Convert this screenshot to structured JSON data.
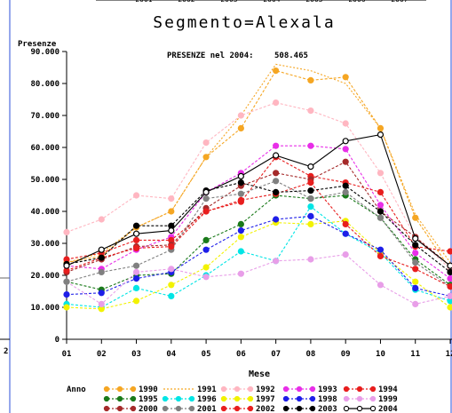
{
  "chart_data": {
    "type": "line",
    "title": "Segmento=Alexala",
    "ylabel": "Presenze",
    "xlabel": "Mese",
    "annotation": {
      "label": "PRESENZE nel 2004:",
      "value": "508.465"
    },
    "top_clipped_ticks": [
      "2001",
      "2002",
      "2003",
      "2004",
      "2005",
      "2006",
      "2007"
    ],
    "left_clipped_tick": "2",
    "categories": [
      "01",
      "02",
      "03",
      "04",
      "05",
      "06",
      "07",
      "08",
      "09",
      "10",
      "11",
      "12"
    ],
    "yticks": [
      {
        "v": 0,
        "label": "0"
      },
      {
        "v": 10000,
        "label": "10.000"
      },
      {
        "v": 20000,
        "label": "20.000"
      },
      {
        "v": 30000,
        "label": "30.000"
      },
      {
        "v": 40000,
        "label": "40.000"
      },
      {
        "v": 50000,
        "label": "50.000"
      },
      {
        "v": 60000,
        "label": "60.000"
      },
      {
        "v": 70000,
        "label": "70.000"
      },
      {
        "v": 80000,
        "label": "80.000"
      },
      {
        "v": 90000,
        "label": "90.000"
      }
    ],
    "ylim": [
      0,
      90000
    ],
    "legend_title": "Anno",
    "legend_placement": "bottom",
    "series": [
      {
        "name": "1990",
        "color": "#f5a623",
        "style": "dotted-marker",
        "values": [
          24000,
          26000,
          35000,
          40000,
          57000,
          66000,
          84000,
          81000,
          82000,
          66000,
          38000,
          22000
        ]
      },
      {
        "name": "1991",
        "color": "#f5a623",
        "style": "dotted",
        "values": [
          24000,
          27000,
          35000,
          40000,
          57000,
          70000,
          86000,
          84000,
          80000,
          66000,
          39000,
          24000
        ]
      },
      {
        "name": "1992",
        "color": "#ffb6c1",
        "style": "dotted-marker",
        "values": [
          33500,
          37500,
          45000,
          44000,
          61500,
          70000,
          74000,
          71500,
          67500,
          52000,
          32000,
          22000
        ]
      },
      {
        "name": "1993",
        "color": "#e82ee8",
        "style": "dotted-marker",
        "values": [
          23000,
          22000,
          28000,
          32000,
          46000,
          52000,
          60500,
          60500,
          59500,
          42000,
          27000,
          19000
        ]
      },
      {
        "name": "1994",
        "color": "#e81e1e",
        "style": "dotted-marker",
        "values": [
          25000,
          27000,
          31000,
          31000,
          40000,
          43000,
          57000,
          51000,
          49000,
          46000,
          29000,
          27500
        ]
      },
      {
        "name": "1995",
        "color": "#1a7a1a",
        "style": "dotted-marker",
        "values": [
          18000,
          15500,
          20000,
          20500,
          31000,
          36000,
          45000,
          44000,
          45000,
          38000,
          25000,
          17000
        ]
      },
      {
        "name": "1996",
        "color": "#00e5e5",
        "style": "dotted-marker",
        "values": [
          11000,
          10000,
          16000,
          13500,
          20000,
          27500,
          24500,
          41500,
          33000,
          27000,
          15500,
          12000
        ]
      },
      {
        "name": "1997",
        "color": "#f2f200",
        "style": "dotted-marker",
        "values": [
          10000,
          9500,
          12000,
          17000,
          22500,
          32000,
          36500,
          36000,
          37000,
          27000,
          18000,
          10000
        ]
      },
      {
        "name": "1998",
        "color": "#1e1ee8",
        "style": "dotted-marker",
        "values": [
          14000,
          14500,
          19000,
          21000,
          28000,
          34000,
          37500,
          38500,
          33000,
          28000,
          16000,
          13500
        ]
      },
      {
        "name": "1999",
        "color": "#e89ee8",
        "style": "dotted-marker",
        "values": [
          18000,
          11000,
          21000,
          22000,
          19500,
          20500,
          24500,
          25000,
          26500,
          17000,
          11000,
          13500
        ]
      },
      {
        "name": "2000",
        "color": "#a52a2a",
        "style": "dotted-marker",
        "values": [
          21000,
          25000,
          29000,
          29500,
          41000,
          48000,
          52000,
          50000,
          55500,
          40000,
          32000,
          23000
        ]
      },
      {
        "name": "2001",
        "color": "#808080",
        "style": "dotted-marker",
        "values": [
          18000,
          21000,
          23000,
          28000,
          44000,
          45500,
          49500,
          44000,
          46000,
          38000,
          24000,
          16500
        ]
      },
      {
        "name": "2002",
        "color": "#e81e1e",
        "style": "dotted-marker",
        "values": [
          21500,
          25500,
          28500,
          29000,
          40000,
          43500,
          45500,
          49000,
          36000,
          26000,
          22000,
          16500
        ]
      },
      {
        "name": "2003",
        "color": "#000000",
        "style": "dotted-marker",
        "values": [
          23500,
          25500,
          35500,
          35500,
          46500,
          49000,
          46000,
          46500,
          48000,
          40000,
          29500,
          21000
        ]
      },
      {
        "name": "2004",
        "color": "#000000",
        "style": "solid-hollow",
        "values": [
          23000,
          28000,
          33000,
          34000,
          46000,
          51000,
          57500,
          54000,
          62000,
          64000,
          31500,
          23000
        ]
      }
    ]
  }
}
